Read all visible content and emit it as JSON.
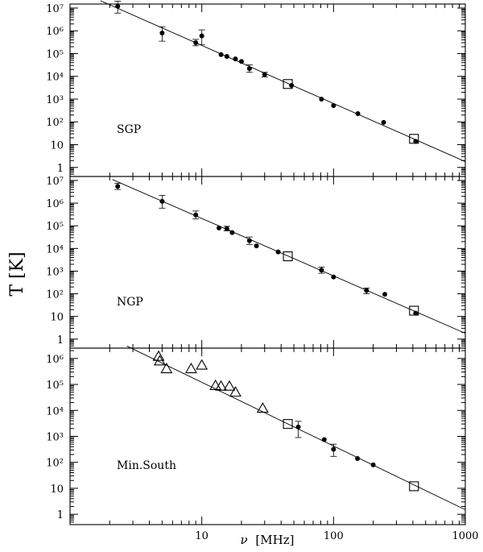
{
  "figure": {
    "ylabel": "T  [K]",
    "xlabel_symbol": "ν",
    "xlabel_unit": "[MHz]"
  },
  "chart_data": [
    {
      "type": "scatter",
      "panel_label": "SGP",
      "xscale": "log",
      "yscale": "log",
      "xlim": [
        1,
        1000
      ],
      "ylim": [
        0.4,
        15000000
      ],
      "xticks": [
        "10",
        "100",
        "1000"
      ],
      "yticks": [
        "1",
        "10",
        "10²",
        "10³",
        "10⁴",
        "10⁵",
        "10⁶",
        "10⁷"
      ],
      "ytick_values": [
        1,
        10,
        100,
        1000,
        10000,
        100000,
        1000000,
        10000000
      ],
      "fit_line": {
        "x": [
          1.7,
          1000
        ],
        "y": [
          21000000,
          1.8
        ]
      },
      "series": [
        {
          "marker": "circle",
          "points": [
            {
              "x": 2.3,
              "y": 12000000,
              "err": [
                6000000,
                20000000
              ]
            },
            {
              "x": 5,
              "y": 800000,
              "err": [
                350000,
                1500000
              ]
            },
            {
              "x": 9,
              "y": 300000,
              "err": [
                220000,
                420000
              ]
            },
            {
              "x": 10,
              "y": 600000,
              "err": [
                250000,
                1100000
              ]
            },
            {
              "x": 14,
              "y": 90000
            },
            {
              "x": 15.5,
              "y": 75000
            },
            {
              "x": 18,
              "y": 58000
            },
            {
              "x": 20,
              "y": 45000
            },
            {
              "x": 23,
              "y": 22000,
              "err": [
                15000,
                32000
              ]
            },
            {
              "x": 30,
              "y": 12000,
              "err": [
                9500,
                15000
              ]
            },
            {
              "x": 48,
              "y": 4000
            },
            {
              "x": 81,
              "y": 1000
            },
            {
              "x": 100,
              "y": 520
            },
            {
              "x": 153,
              "y": 230
            },
            {
              "x": 240,
              "y": 95
            },
            {
              "x": 420,
              "y": 14
            }
          ]
        },
        {
          "marker": "square",
          "points": [
            {
              "x": 45,
              "y": 4600
            },
            {
              "x": 408,
              "y": 18
            }
          ]
        }
      ]
    },
    {
      "type": "scatter",
      "panel_label": "NGP",
      "xscale": "log",
      "yscale": "log",
      "xlim": [
        1,
        1000
      ],
      "ylim": [
        0.4,
        15000000
      ],
      "xticks": [
        "10",
        "100",
        "1000"
      ],
      "yticks": [
        "1",
        "10",
        "10²",
        "10³",
        "10⁴",
        "10⁵",
        "10⁶",
        "10⁷"
      ],
      "ytick_values": [
        1,
        10,
        100,
        1000,
        10000,
        100000,
        1000000,
        10000000
      ],
      "fit_line": {
        "x": [
          2.1,
          1000
        ],
        "y": [
          11000000,
          1.8
        ]
      },
      "series": [
        {
          "marker": "circle",
          "points": [
            {
              "x": 2.3,
              "y": 5500000,
              "err": [
                4000000,
                7500000
              ]
            },
            {
              "x": 5,
              "y": 1200000,
              "err": [
                600000,
                2200000
              ]
            },
            {
              "x": 9,
              "y": 300000,
              "err": [
                200000,
                450000
              ]
            },
            {
              "x": 13.5,
              "y": 80000
            },
            {
              "x": 15.5,
              "y": 75000,
              "err": [
                60000,
                95000
              ]
            },
            {
              "x": 17,
              "y": 50000
            },
            {
              "x": 23,
              "y": 22000,
              "err": [
                15000,
                32000
              ]
            },
            {
              "x": 26,
              "y": 13000
            },
            {
              "x": 38,
              "y": 7000
            },
            {
              "x": 81,
              "y": 1100,
              "err": [
                800,
                1500
              ]
            },
            {
              "x": 100,
              "y": 550
            },
            {
              "x": 178,
              "y": 140,
              "err": [
                100,
                180
              ]
            },
            {
              "x": 245,
              "y": 95
            },
            {
              "x": 420,
              "y": 14
            }
          ]
        },
        {
          "marker": "square",
          "points": [
            {
              "x": 45,
              "y": 4500
            },
            {
              "x": 408,
              "y": 18
            }
          ]
        }
      ]
    },
    {
      "type": "scatter",
      "panel_label": "Min.South",
      "xscale": "log",
      "yscale": "log",
      "xlim": [
        1,
        1000
      ],
      "ylim": [
        0.4,
        2500000
      ],
      "xticks": [
        "10",
        "100",
        "1000"
      ],
      "yticks": [
        "1",
        "10",
        "10²",
        "10³",
        "10⁴",
        "10⁵",
        "10⁶"
      ],
      "ytick_values": [
        1,
        10,
        100,
        1000,
        10000,
        100000,
        1000000
      ],
      "fit_line": {
        "x": [
          2.7,
          1000
        ],
        "y": [
          3000000,
          1.5
        ]
      },
      "series": [
        {
          "marker": "triangle",
          "points": [
            {
              "x": 4.7,
              "y": 1200000
            },
            {
              "x": 4.8,
              "y": 800000
            },
            {
              "x": 5.4,
              "y": 400000
            },
            {
              "x": 8.3,
              "y": 400000
            },
            {
              "x": 10,
              "y": 550000
            },
            {
              "x": 12.7,
              "y": 90000
            },
            {
              "x": 14,
              "y": 85000
            },
            {
              "x": 16.2,
              "y": 85000
            },
            {
              "x": 18,
              "y": 50000
            },
            {
              "x": 29,
              "y": 12000
            }
          ]
        },
        {
          "marker": "circle",
          "points": [
            {
              "x": 54,
              "y": 2300,
              "err": [
                900,
                3800
              ]
            },
            {
              "x": 85,
              "y": 750
            },
            {
              "x": 100,
              "y": 320,
              "err": [
                170,
                500
              ]
            },
            {
              "x": 152,
              "y": 140
            },
            {
              "x": 200,
              "y": 80
            }
          ]
        },
        {
          "marker": "square",
          "points": [
            {
              "x": 45,
              "y": 3000
            },
            {
              "x": 408,
              "y": 12
            }
          ]
        }
      ]
    }
  ]
}
